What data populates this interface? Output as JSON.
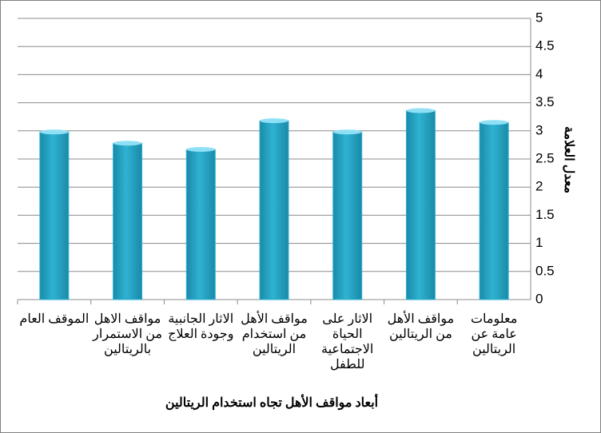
{
  "chart_data": {
    "type": "bar",
    "x_label": "أبعاد مواقف الأهل تجاه استخدام الريتالين",
    "y_label": "معدل العلامة",
    "categories": [
      "معلومات عامة عن الريتالين",
      "مواقف الأهل من الريتالين",
      "الاثار على الحياة الاجتماعية للطفل",
      "مواقف الأهل من استخدام الريتالين",
      "الاثار الجانبية وجودة العلاج",
      "مواقف الاهل من الاستمرار بالريتالين",
      "الموقف العام"
    ],
    "values": [
      3.15,
      3.36,
      2.98,
      3.18,
      2.67,
      2.78,
      2.98
    ],
    "color": "#2fb2d2",
    "ylim": [
      0,
      5
    ],
    "yticks": [
      0,
      0.5,
      1,
      1.5,
      2,
      2.5,
      3,
      3.5,
      4,
      4.5,
      5
    ],
    "grid": true,
    "reverse_x": true,
    "y_axis_side": "right"
  }
}
